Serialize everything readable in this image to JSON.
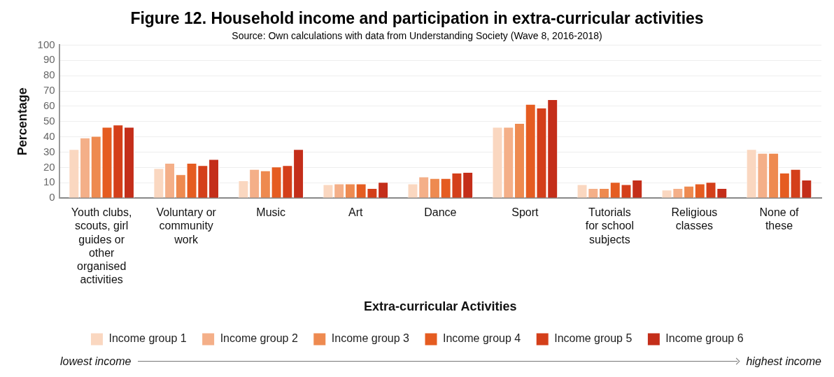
{
  "chart_data": {
    "type": "bar",
    "title": "Figure 12. Household income and participation in extra-curricular activities",
    "subtitle": "Source: Own calculations with data from Understanding Society (Wave 8, 2016-2018)",
    "xlabel": "Extra-curricular Activities",
    "ylabel": "Percentage",
    "categories": [
      "Youth clubs, scouts, girl guides or other organised activities",
      "Voluntary or community work",
      "Music",
      "Art",
      "Dance",
      "Sport",
      "Tutorials for school subjects",
      "Religious classes",
      "None of these"
    ],
    "series": [
      {
        "name": "Income group 1",
        "color": "#fad7c0",
        "values": [
          32,
          19.5,
          11.5,
          9,
          9.5,
          46.5,
          9,
          5.5,
          32
        ]
      },
      {
        "name": "Income group 2",
        "color": "#f4af88",
        "values": [
          39.5,
          23,
          19,
          9.5,
          14,
          46.5,
          6.5,
          6.5,
          29.5
        ]
      },
      {
        "name": "Income group 3",
        "color": "#ee8a50",
        "values": [
          40.5,
          15.5,
          18,
          9.5,
          13,
          49,
          6.5,
          8,
          29.5
        ]
      },
      {
        "name": "Income group 4",
        "color": "#e55c21",
        "values": [
          46.5,
          23,
          20.5,
          9.5,
          13,
          61.5,
          10.5,
          9.5,
          16.5
        ]
      },
      {
        "name": "Income group 5",
        "color": "#d43f1a",
        "values": [
          48,
          21.5,
          21.5,
          6.5,
          16.5,
          59,
          9,
          10.5,
          19
        ]
      },
      {
        "name": "Income group 6",
        "color": "#c42e1a",
        "values": [
          46.5,
          25.5,
          32,
          10.5,
          17,
          64.5,
          12,
          6.5,
          12
        ]
      }
    ],
    "ylim": [
      0,
      100
    ],
    "yticks": [
      0,
      10,
      20,
      30,
      40,
      50,
      60,
      70,
      80,
      90,
      100
    ],
    "grid": "y",
    "legend": "bottom",
    "annotations": [
      "lowest income",
      "highest income"
    ]
  }
}
